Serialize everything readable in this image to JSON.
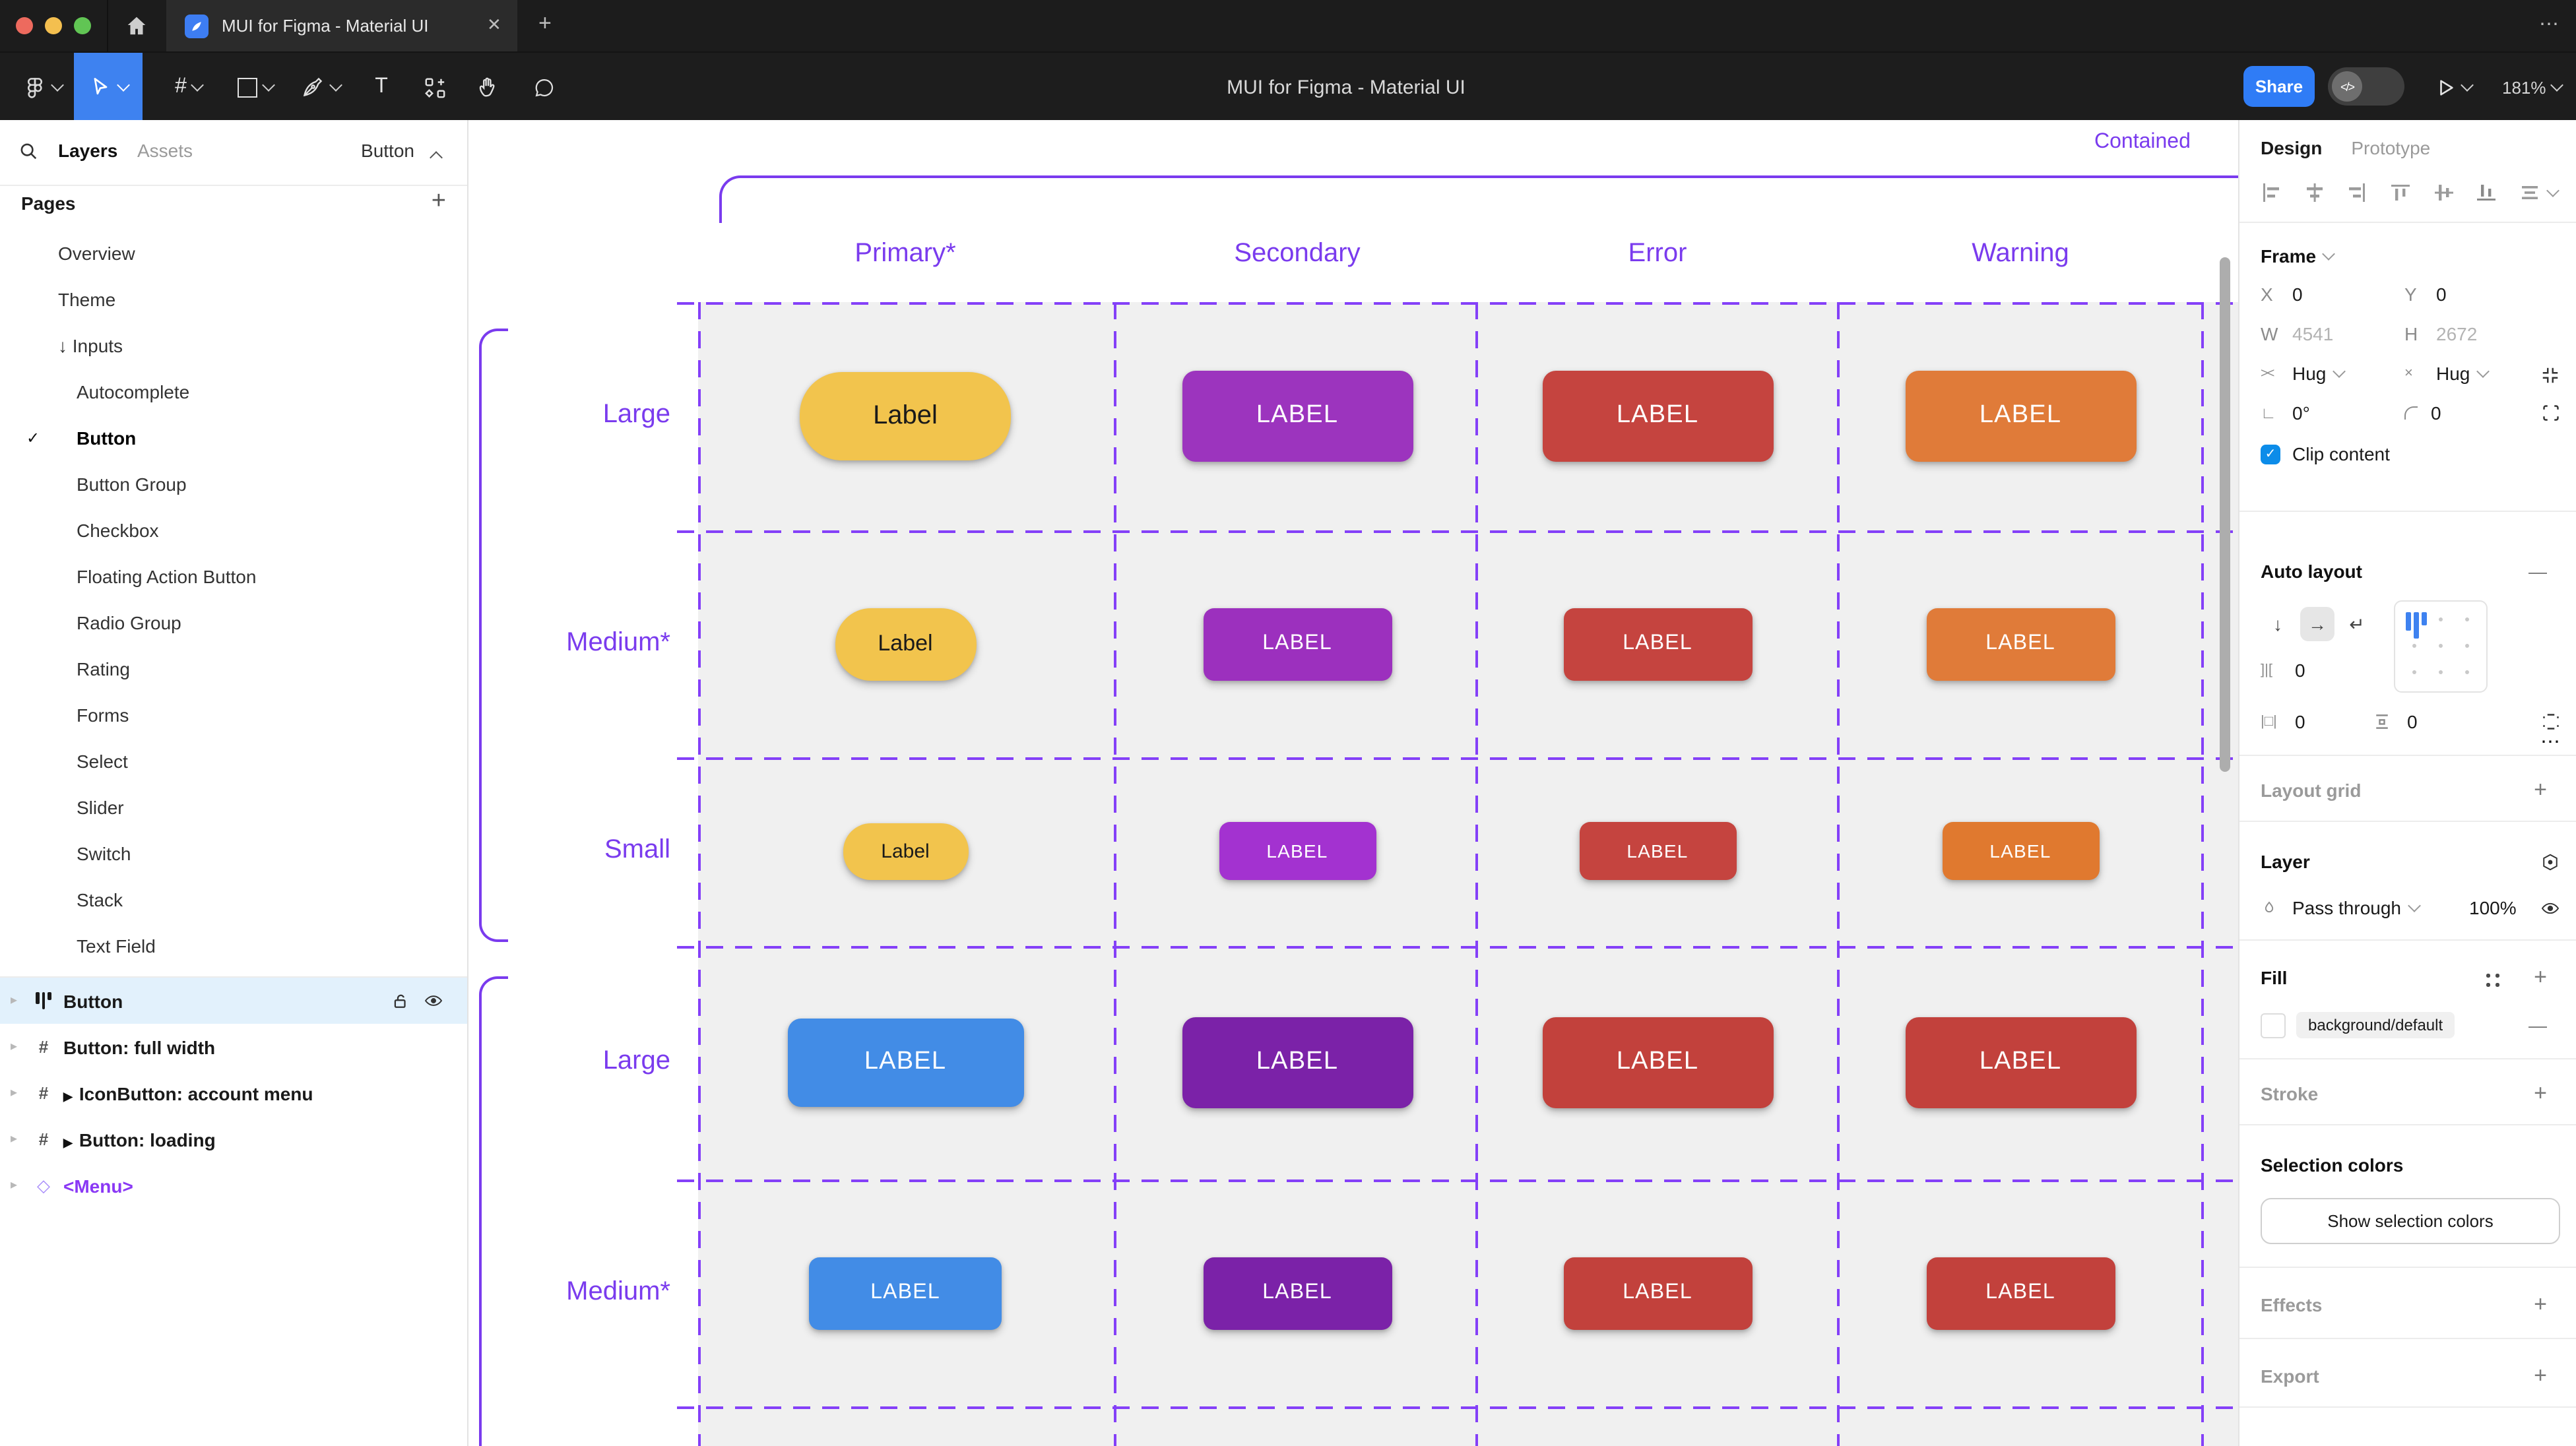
{
  "theme": {
    "accent_blue": "#3E82F0",
    "share_blue": "#2F7CF6",
    "guide_purple": "#8440F8",
    "label_purple": "#7A3BEE",
    "selected_row_bg": "#E2F1FC",
    "canvas_cell_bg": "#F0F0F0",
    "checkbox_blue": "#0C8CE9"
  },
  "window": {
    "tab_title": "MUI for Figma - Material UI",
    "close_label": "✕",
    "new_tab_label": "+",
    "more_label": "⋯"
  },
  "toolbar": {
    "doc_title": "MUI for Figma - Material UI",
    "share_label": "Share",
    "dev_toggle_label": "</>",
    "zoom_level": "181%",
    "text_tool_label": "T",
    "frame_tool_label": "#"
  },
  "left_panel": {
    "tab_layers": "Layers",
    "tab_assets": "Assets",
    "page_jump_label": "Button",
    "pages_header": "Pages",
    "add_label": "+",
    "glyphs": {
      "expand_arrow": "↓",
      "check": "✓",
      "row_chevron": "▸",
      "component_marker": "▶",
      "instance_diamond": "◇"
    },
    "pages": [
      {
        "label": "Overview"
      },
      {
        "label": "Theme"
      },
      {
        "label": "Inputs",
        "prefix": "↓"
      },
      {
        "label": "Autocomplete",
        "child": true
      },
      {
        "label": "Button",
        "child": true,
        "checked": true,
        "active": true
      },
      {
        "label": "Button Group",
        "child": true
      },
      {
        "label": "Checkbox",
        "child": true
      },
      {
        "label": "Floating Action Button",
        "child": true
      },
      {
        "label": "Radio Group",
        "child": true
      },
      {
        "label": "Rating",
        "child": true
      },
      {
        "label": "Forms",
        "child": true
      },
      {
        "label": "Select",
        "child": true
      },
      {
        "label": "Slider",
        "child": true
      },
      {
        "label": "Switch",
        "child": true
      },
      {
        "label": "Stack",
        "child": true
      },
      {
        "label": "Text Field",
        "child": true
      }
    ],
    "layers": [
      {
        "label": "Button",
        "icon": "autolayout",
        "selected": true
      },
      {
        "label": "Button: full width",
        "icon": "frame"
      },
      {
        "label": "IconButton: account menu",
        "icon": "frame",
        "component": true
      },
      {
        "label": "Button: loading",
        "icon": "frame",
        "component": true
      },
      {
        "label": "<Menu>",
        "icon": "diamond",
        "purple": true
      }
    ]
  },
  "canvas": {
    "frame_title": "Contained",
    "columns": [
      "Primary*",
      "Secondary",
      "Error",
      "Warning"
    ],
    "rows": [
      {
        "label": "Large",
        "buttons": [
          {
            "text": "Label",
            "bg": "#F2C44D",
            "fg": "#1A1A1A",
            "w": 160,
            "h": 67,
            "r": 32,
            "fs": 20
          },
          {
            "text": "LABEL",
            "bg": "#9C34BE",
            "fg": "#FFFFFF",
            "w": 175,
            "h": 69,
            "r": 10,
            "fs": 19
          },
          {
            "text": "LABEL",
            "bg": "#C5443F",
            "fg": "#FFFFFF",
            "w": 175,
            "h": 69,
            "r": 10,
            "fs": 19
          },
          {
            "text": "LABEL",
            "bg": "#E07B39",
            "fg": "#FFFFFF",
            "w": 175,
            "h": 69,
            "r": 10,
            "fs": 19
          }
        ]
      },
      {
        "label": "Medium*",
        "buttons": [
          {
            "text": "Label",
            "bg": "#F2C44D",
            "fg": "#1A1A1A",
            "w": 107,
            "h": 55,
            "r": 27,
            "fs": 17
          },
          {
            "text": "LABEL",
            "bg": "#9C30BE",
            "fg": "#FFFFFF",
            "w": 143,
            "h": 55,
            "r": 8,
            "fs": 16
          },
          {
            "text": "LABEL",
            "bg": "#C5443F",
            "fg": "#FFFFFF",
            "w": 143,
            "h": 55,
            "r": 8,
            "fs": 16
          },
          {
            "text": "LABEL",
            "bg": "#E07B39",
            "fg": "#FFFFFF",
            "w": 143,
            "h": 55,
            "r": 8,
            "fs": 16
          }
        ]
      },
      {
        "label": "Small",
        "buttons": [
          {
            "text": "Label",
            "bg": "#F2C44D",
            "fg": "#1A1A1A",
            "w": 95,
            "h": 43,
            "r": 21,
            "fs": 15
          },
          {
            "text": "LABEL",
            "bg": "#A332D0",
            "fg": "#FFFFFF",
            "w": 119,
            "h": 44,
            "r": 8,
            "fs": 14
          },
          {
            "text": "LABEL",
            "bg": "#C5443F",
            "fg": "#FFFFFF",
            "w": 119,
            "h": 44,
            "r": 8,
            "fs": 14
          },
          {
            "text": "LABEL",
            "bg": "#E0792F",
            "fg": "#FFFFFF",
            "w": 119,
            "h": 44,
            "r": 8,
            "fs": 14
          }
        ]
      },
      {
        "label": "Large",
        "buttons": [
          {
            "text": "LABEL",
            "bg": "#428CE6",
            "fg": "#FFFFFF",
            "w": 179,
            "h": 67,
            "r": 10,
            "fs": 19
          },
          {
            "text": "LABEL",
            "bg": "#7B22A8",
            "fg": "#FFFFFF",
            "w": 175,
            "h": 69,
            "r": 10,
            "fs": 19
          },
          {
            "text": "LABEL",
            "bg": "#C2413C",
            "fg": "#FFFFFF",
            "w": 175,
            "h": 69,
            "r": 10,
            "fs": 19
          },
          {
            "text": "LABEL",
            "bg": "#C2413C",
            "fg": "#FFFFFF",
            "w": 175,
            "h": 69,
            "r": 10,
            "fs": 19
          }
        ]
      },
      {
        "label": "Medium*",
        "buttons": [
          {
            "text": "LABEL",
            "bg": "#428CE6",
            "fg": "#FFFFFF",
            "w": 146,
            "h": 55,
            "r": 8,
            "fs": 16
          },
          {
            "text": "LABEL",
            "bg": "#7B22A8",
            "fg": "#FFFFFF",
            "w": 143,
            "h": 55,
            "r": 8,
            "fs": 16
          },
          {
            "text": "LABEL",
            "bg": "#C2413C",
            "fg": "#FFFFFF",
            "w": 143,
            "h": 55,
            "r": 8,
            "fs": 16
          },
          {
            "text": "LABEL",
            "bg": "#C2413C",
            "fg": "#FFFFFF",
            "w": 143,
            "h": 55,
            "r": 8,
            "fs": 16
          }
        ]
      }
    ]
  },
  "right_panel": {
    "tab_design": "Design",
    "tab_prototype": "Prototype",
    "frame_label": "Frame",
    "x_label": "X",
    "x_value": "0",
    "y_label": "Y",
    "y_value": "0",
    "w_label": "W",
    "w_value": "4541",
    "h_label": "H",
    "h_value": "2672",
    "hug_h_icon": "><",
    "hug_h": "Hug",
    "hug_v_icon": "×",
    "hug_v": "Hug",
    "rotation_icon": "∟",
    "rotation": "0°",
    "corner_radius": "0",
    "clip_label": "Clip content",
    "clip_check": "✓",
    "auto_layout_label": "Auto layout",
    "auto_layout_remove": "—",
    "dir_down": "↓",
    "dir_right": "→",
    "dir_wrap": "↵",
    "more_dots": "⋯",
    "gap_icon": "]|[",
    "gap_value": "0",
    "pad_h_icon": "|□|",
    "pad_h_value": "0",
    "pad_v_value": "0",
    "layout_grid_label": "Layout grid",
    "layer_label": "Layer",
    "blend_mode": "Pass through",
    "opacity": "100%",
    "fill_label": "Fill",
    "fill_style": "background/default",
    "fill_remove": "—",
    "stroke_label": "Stroke",
    "selection_colors_label": "Selection colors",
    "show_selection_button": "Show selection colors",
    "effects_label": "Effects",
    "export_label": "Export",
    "plus": "+"
  }
}
